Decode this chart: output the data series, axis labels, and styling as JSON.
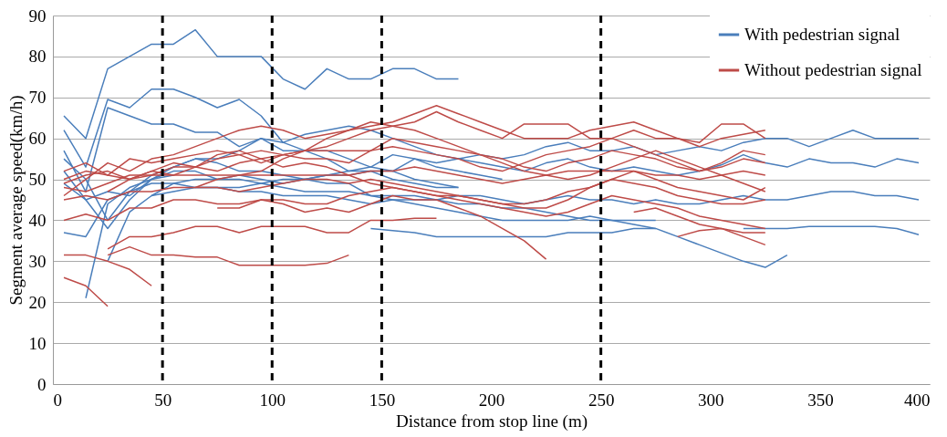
{
  "chart_data": {
    "type": "line",
    "xlabel": "Distance from stop line (m)",
    "ylabel": "Segment average speed(km/h)",
    "xlim": [
      0,
      400
    ],
    "xticks": [
      0,
      50,
      100,
      150,
      200,
      250,
      300,
      350,
      400
    ],
    "ylim": [
      0,
      90
    ],
    "yticks": [
      0,
      10,
      20,
      30,
      40,
      50,
      60,
      70,
      80,
      90
    ],
    "grid": "y",
    "legend": "top right",
    "marker": "none",
    "line_style": "solid",
    "ref_lines": [
      {
        "axis": "x",
        "value": 50,
        "color": "#000000",
        "line_style": "dashed"
      },
      {
        "axis": "x",
        "value": 100,
        "color": "#000000",
        "line_style": "dashed"
      },
      {
        "axis": "x",
        "value": 150,
        "color": "#000000",
        "line_style": "dashed"
      },
      {
        "axis": "x",
        "value": 250,
        "color": "#000000",
        "line_style": "dashed"
      }
    ],
    "series": [
      {
        "name": "With pedestrian signal",
        "color": "#4a7ebb",
        "x": [
          5,
          15,
          25,
          35,
          45,
          55,
          65,
          75,
          85,
          95,
          105,
          115,
          125,
          135,
          145,
          155,
          165,
          175,
          185
        ],
        "values": [
          65.5,
          60,
          77,
          80,
          83,
          83,
          86.5,
          80,
          80,
          80,
          74.5,
          72,
          77,
          74.5,
          74.5,
          77,
          77,
          74.5,
          74.5
        ]
      },
      {
        "color": "#4a7ebb",
        "x": [
          5,
          15,
          25,
          35,
          45,
          55,
          65,
          75,
          85,
          95,
          105,
          115,
          125,
          135,
          145,
          155,
          165,
          175,
          185,
          195,
          205
        ],
        "values": [
          62,
          53,
          69.5,
          67.5,
          72,
          72,
          70,
          67.5,
          69.5,
          65.5,
          59,
          57,
          57,
          55,
          53,
          52,
          55,
          53,
          52,
          51,
          50
        ]
      },
      {
        "color": "#4a7ebb",
        "x": [
          5,
          15,
          25,
          35,
          45,
          55,
          65,
          75,
          85,
          95,
          105,
          115,
          125,
          135,
          145,
          155,
          165,
          175,
          185
        ],
        "values": [
          57,
          47,
          67.5,
          65.5,
          63.5,
          63.5,
          61.5,
          61.5,
          58,
          60,
          57,
          57,
          55,
          52,
          52,
          50,
          49,
          48,
          48
        ]
      },
      {
        "color": "#4a7ebb",
        "x": [
          5,
          15,
          25,
          35,
          45,
          55,
          65,
          75,
          85,
          95,
          105,
          115,
          125,
          135,
          145,
          155,
          165,
          175,
          185,
          195,
          205,
          215,
          225,
          235,
          245,
          255,
          265,
          275
        ],
        "values": [
          37,
          36,
          45,
          47,
          51,
          53,
          55,
          54,
          52,
          52,
          51,
          50,
          49,
          49,
          46,
          45,
          44,
          43,
          42,
          41,
          40,
          40,
          40,
          40,
          41,
          40,
          40,
          40
        ]
      },
      {
        "color": "#4a7ebb",
        "x": [
          15,
          25,
          35,
          45,
          55,
          65,
          75,
          85,
          95,
          105,
          115,
          125,
          135,
          145,
          155,
          165,
          175,
          185,
          195,
          205,
          215,
          225,
          235,
          245,
          255,
          265,
          275,
          285,
          295,
          305,
          315,
          325,
          335,
          345,
          355,
          365,
          375,
          385,
          395
        ],
        "values": [
          21,
          44,
          48,
          50,
          53,
          55,
          55,
          57,
          60,
          59,
          61,
          62,
          63,
          62,
          60,
          58,
          56,
          55,
          56,
          55,
          56,
          58,
          59,
          57,
          57,
          58,
          56,
          57,
          58,
          57,
          59,
          60,
          60,
          58,
          60,
          62,
          60,
          60,
          60
        ]
      },
      {
        "color": "#4a7ebb",
        "x": [
          5,
          15,
          25,
          35,
          45,
          55,
          65,
          75,
          85,
          95,
          105,
          115,
          125,
          135,
          145,
          155,
          165,
          175,
          185,
          195,
          205,
          215,
          225,
          235,
          245,
          255,
          265,
          275,
          285,
          295,
          305,
          315,
          325,
          335,
          345,
          355,
          365,
          375,
          385,
          395
        ],
        "values": [
          52,
          45,
          38,
          45,
          50,
          52,
          52,
          50,
          51,
          50,
          49,
          50,
          51,
          52,
          53,
          56,
          55,
          54,
          55,
          54,
          53,
          52,
          54,
          55,
          53,
          52,
          53,
          52,
          51,
          52,
          53.5,
          56,
          54,
          53,
          55,
          54,
          54,
          53,
          55,
          54
        ]
      },
      {
        "color": "#4a7ebb",
        "x": [
          5,
          15,
          25,
          35,
          45,
          55,
          65,
          75,
          85,
          95,
          105,
          115,
          125,
          135,
          145,
          155,
          165,
          175,
          185,
          195,
          205,
          215,
          225,
          235,
          245,
          255,
          265,
          275,
          285,
          295,
          305,
          315,
          325,
          335,
          345,
          355,
          365,
          375,
          385,
          395
        ],
        "values": [
          55,
          50,
          40,
          47,
          49,
          49,
          48,
          48,
          47,
          47,
          46,
          46,
          46,
          45,
          44,
          45,
          45,
          45,
          46,
          46,
          45,
          44,
          45,
          46,
          45,
          45,
          44,
          45,
          44,
          44,
          45,
          46,
          45,
          45,
          46,
          47,
          47,
          46,
          46,
          45
        ]
      },
      {
        "color": "#4a7ebb",
        "x": [
          25,
          35,
          45,
          55,
          65,
          75,
          85,
          95,
          105,
          115,
          125,
          135,
          145,
          155,
          165,
          175,
          185,
          195,
          205,
          215,
          225,
          235,
          245,
          255,
          265,
          275,
          285,
          295,
          305,
          315,
          325,
          335
        ],
        "values": [
          30,
          42,
          46,
          49,
          50,
          50,
          50,
          49,
          48,
          47,
          47,
          47,
          46,
          46,
          46,
          45,
          44,
          44,
          43,
          43,
          42,
          41,
          40,
          40,
          39,
          38,
          36,
          34,
          32,
          30,
          28.5,
          31.5
        ]
      },
      {
        "color": "#4a7ebb",
        "x": [
          145,
          155,
          165,
          175,
          185,
          195,
          205,
          215,
          225,
          235,
          245,
          255,
          265,
          275
        ],
        "values": [
          38,
          37.5,
          37,
          36,
          36,
          36,
          36,
          36,
          36,
          37,
          37,
          37,
          38,
          38
        ]
      },
      {
        "color": "#4a7ebb",
        "x": [
          315,
          325,
          335,
          345,
          355,
          365,
          375,
          385,
          395
        ],
        "values": [
          38,
          38,
          38,
          38.5,
          38.5,
          38.5,
          38.5,
          38,
          36.5
        ]
      },
      {
        "color": "#4a7ebb",
        "x": [
          45,
          55,
          65,
          75,
          85,
          95,
          105,
          115,
          125,
          135,
          145,
          155,
          165,
          175,
          185
        ],
        "values": [
          46,
          47,
          48,
          48,
          48,
          49,
          50,
          50,
          51,
          51,
          52,
          52,
          50,
          49,
          48
        ]
      },
      {
        "color": "#4a7ebb",
        "x": [
          5,
          15,
          25,
          35,
          45,
          55
        ],
        "values": [
          49,
          45,
          47,
          46,
          50,
          51
        ]
      },
      {
        "name": "Without pedestrian signal",
        "color": "#be4b48",
        "x": [
          5,
          15,
          25,
          35,
          45,
          55,
          65,
          75,
          85,
          95,
          105,
          115,
          125,
          135,
          145,
          155,
          165,
          175,
          185,
          195,
          205,
          215,
          225,
          235,
          245,
          255,
          265,
          275,
          285,
          295,
          305,
          315,
          325
        ],
        "values": [
          46,
          50,
          54,
          52,
          55,
          56,
          58,
          60,
          62,
          63,
          62,
          60,
          61,
          62,
          63,
          64,
          66,
          68,
          66,
          64,
          62,
          60,
          60,
          60,
          62,
          63,
          64,
          62,
          60,
          58,
          60,
          61,
          62
        ]
      },
      {
        "color": "#be4b48",
        "x": [
          5,
          15,
          25,
          35,
          45,
          55,
          65,
          75,
          85,
          95,
          105,
          115,
          125,
          135,
          145,
          155,
          165,
          175,
          185,
          195,
          205,
          215,
          225,
          235,
          245,
          255,
          265,
          275,
          285,
          295,
          305,
          315,
          325
        ],
        "values": [
          49,
          51,
          52,
          50,
          52,
          54,
          53,
          55,
          56,
          57,
          56,
          57,
          58,
          60,
          62,
          63,
          64,
          66.5,
          64,
          62,
          60,
          63.5,
          63.5,
          63.5,
          60,
          60,
          62,
          60,
          60,
          59,
          63.5,
          63.5,
          60
        ]
      },
      {
        "color": "#be4b48",
        "x": [
          5,
          15,
          25
        ],
        "values": [
          26,
          24,
          19
        ]
      },
      {
        "color": "#be4b48",
        "x": [
          5,
          15,
          25,
          35,
          45
        ],
        "values": [
          31.5,
          31.5,
          30,
          28,
          24
        ]
      },
      {
        "color": "#be4b48",
        "x": [
          25,
          35,
          45,
          55,
          65,
          75,
          85,
          95,
          105,
          115,
          125,
          135
        ],
        "values": [
          31.5,
          33.5,
          31.5,
          31.5,
          31,
          31,
          29,
          29,
          29,
          29,
          29.5,
          31.5
        ]
      },
      {
        "color": "#be4b48",
        "x": [
          25,
          35,
          45,
          55,
          65,
          75,
          85,
          95,
          105,
          115,
          125,
          135,
          145,
          155,
          165,
          175
        ],
        "values": [
          33,
          36,
          36,
          37,
          38.5,
          38.5,
          37,
          38.5,
          38.5,
          38.5,
          37,
          37,
          40,
          40,
          40.5,
          40.5
        ]
      },
      {
        "color": "#be4b48",
        "x": [
          5,
          15,
          25,
          35,
          45,
          55,
          65,
          75,
          85,
          95,
          105,
          115,
          125,
          135,
          145,
          155,
          165,
          175,
          185,
          195,
          205,
          215,
          225
        ],
        "values": [
          40,
          41.5,
          40,
          43,
          43,
          45,
          45,
          44,
          44,
          45,
          44,
          42,
          43,
          42,
          44,
          46,
          45,
          45,
          43,
          41,
          38,
          35,
          30.5
        ]
      },
      {
        "color": "#be4b48",
        "x": [
          5,
          15,
          25,
          35,
          45,
          55,
          65,
          75,
          85,
          95,
          105,
          115,
          125,
          135,
          145,
          155,
          165,
          175,
          185,
          195,
          205,
          215,
          225,
          235,
          245,
          255,
          265,
          275,
          285,
          295,
          305,
          315,
          325
        ],
        "values": [
          45,
          46,
          45,
          47,
          47,
          48,
          48,
          48,
          47,
          48,
          49,
          50,
          50,
          49,
          50,
          49,
          48,
          47,
          46,
          45,
          44,
          44,
          45,
          47,
          48,
          50,
          49,
          48,
          46,
          45,
          44,
          44,
          45
        ]
      },
      {
        "color": "#be4b48",
        "x": [
          5,
          15,
          25,
          35,
          45,
          55,
          65,
          75,
          85,
          95,
          105,
          115,
          125,
          135,
          145,
          155,
          165,
          175,
          185,
          195,
          205,
          215,
          225,
          235,
          245,
          255,
          265,
          275,
          285,
          295,
          305,
          315,
          325
        ],
        "values": [
          48,
          47,
          49,
          51,
          51,
          51,
          51,
          51,
          51,
          51,
          51,
          51,
          51,
          51,
          52,
          52,
          53,
          52,
          51,
          50,
          49,
          50,
          51,
          52,
          52,
          52,
          52,
          51,
          51,
          50,
          51,
          52,
          51
        ]
      },
      {
        "color": "#be4b48",
        "x": [
          5,
          15,
          25,
          35,
          45,
          55,
          65,
          75,
          85,
          95,
          105,
          115,
          125,
          135,
          145,
          155,
          165,
          175,
          185,
          195,
          205,
          215,
          225,
          235,
          245,
          255,
          265,
          275,
          285,
          295,
          305,
          315,
          325
        ],
        "values": [
          50,
          52,
          51,
          50,
          52,
          51,
          53,
          52,
          54,
          55,
          56,
          57,
          57,
          57,
          57,
          58,
          57,
          56,
          55,
          53,
          52,
          54,
          56,
          57,
          58,
          60,
          58,
          56,
          54,
          52,
          54,
          57,
          56
        ]
      },
      {
        "color": "#be4b48",
        "x": [
          5,
          15,
          25,
          35,
          45,
          55,
          65,
          75,
          85,
          95,
          105,
          115,
          125,
          135,
          145,
          155,
          165,
          175,
          185,
          195,
          205,
          215,
          225,
          235,
          245,
          255,
          265,
          275,
          285,
          295,
          305,
          315,
          325
        ],
        "values": [
          52,
          54,
          51,
          55,
          54,
          55,
          56,
          57,
          56,
          54,
          56,
          55,
          55,
          54,
          57,
          60,
          59,
          58,
          57,
          56,
          55,
          53,
          52,
          54,
          55,
          57,
          56,
          55,
          53,
          52,
          53,
          55,
          54
        ]
      },
      {
        "color": "#be4b48",
        "x": [
          25,
          35,
          45,
          55,
          65,
          75,
          85,
          95,
          105,
          115,
          125,
          135,
          145,
          155,
          165,
          175,
          185,
          195,
          205,
          215,
          225,
          235,
          245,
          255,
          265,
          275,
          285,
          295,
          305,
          315,
          325
        ],
        "values": [
          47,
          50,
          51,
          53,
          53,
          56,
          57,
          55,
          53,
          54,
          53,
          51,
          49,
          48,
          47,
          46,
          46,
          45,
          44,
          43,
          43,
          45,
          48,
          50,
          52,
          50,
          48,
          47,
          46,
          45,
          48
        ]
      },
      {
        "color": "#be4b48",
        "x": [
          65,
          75,
          85,
          95,
          105,
          115,
          125,
          135,
          145,
          155,
          165,
          175,
          185,
          195,
          205,
          215,
          225,
          235,
          245,
          255,
          265,
          275,
          285,
          295,
          305,
          315,
          325
        ],
        "values": [
          48,
          50,
          51,
          52,
          55,
          57,
          60,
          62,
          64,
          63,
          62,
          60,
          58,
          56,
          54,
          52,
          51,
          50,
          51,
          53,
          55,
          57,
          55,
          53,
          51,
          49,
          47
        ]
      },
      {
        "color": "#be4b48",
        "x": [
          75,
          85,
          95,
          105,
          115,
          125,
          135,
          145,
          155,
          165,
          175,
          185,
          195,
          205,
          215,
          225,
          235,
          245,
          255,
          265,
          275,
          285,
          295,
          305,
          315,
          325
        ],
        "values": [
          43,
          43,
          45,
          45,
          44,
          44,
          46,
          47,
          48,
          47,
          46,
          45,
          44,
          43,
          42,
          41,
          42,
          44,
          46,
          45,
          44,
          43,
          41,
          40,
          39,
          38
        ]
      },
      {
        "color": "#be4b48",
        "x": [
          285,
          295,
          305,
          315,
          325
        ],
        "values": [
          36,
          37.5,
          38,
          37,
          37
        ]
      },
      {
        "color": "#be4b48",
        "x": [
          265,
          275,
          285,
          295,
          305,
          315,
          325
        ],
        "values": [
          42,
          43,
          41,
          39,
          38,
          36,
          34
        ]
      }
    ]
  }
}
